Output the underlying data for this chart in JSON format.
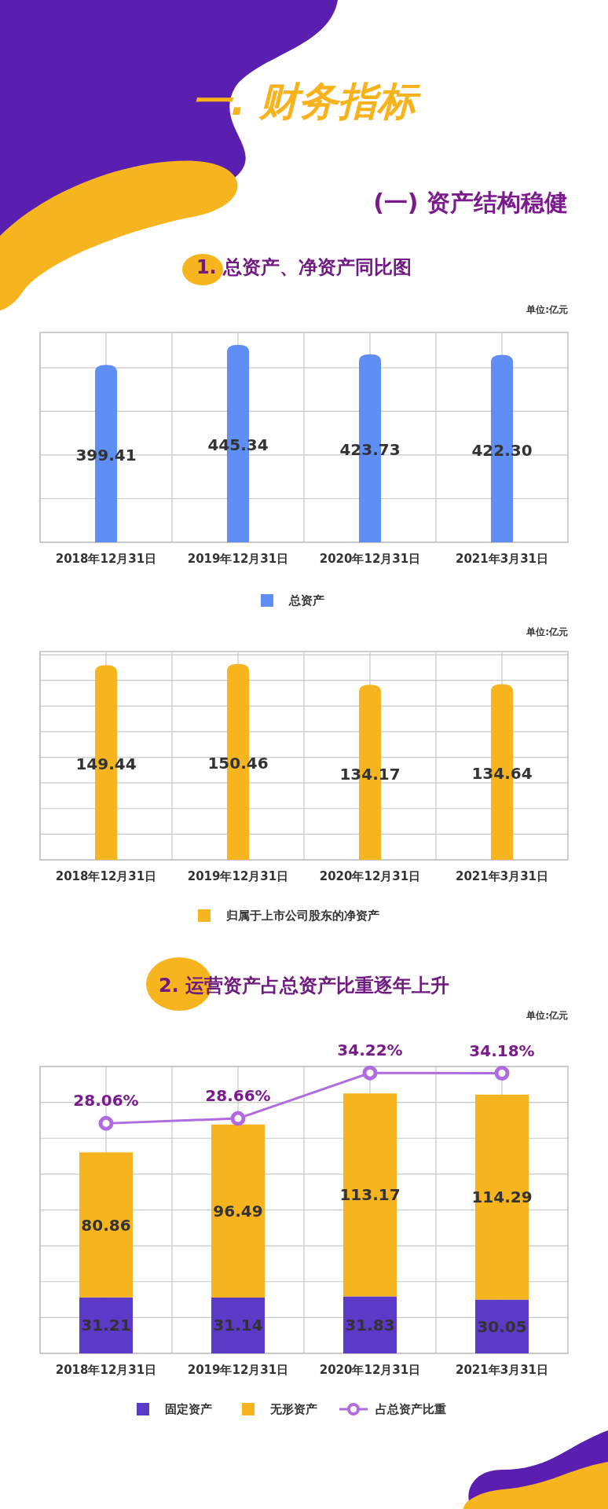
{
  "chart_data": [
    {
      "type": "bar",
      "title": "1. 总资产、净资产同比图",
      "annotations": [
        "一. 财务指标",
        "(一) 资产结构稳健",
        "单位:亿元"
      ],
      "categories": [
        "2018年12月31日",
        "2019年12月31日",
        "2020年12月31日",
        "2021年3月31日"
      ],
      "series": [
        {
          "name": "总资产",
          "color": "#5f8ef5",
          "values": [
            399.41,
            445.34,
            423.73,
            422.3
          ],
          "value_labels": [
            "399.41",
            "445.34",
            "423.73",
            "422.30"
          ]
        }
      ],
      "grid": true,
      "legend": "bottom"
    },
    {
      "type": "bar",
      "annotations": [
        "单位:亿元"
      ],
      "categories": [
        "2018年12月31日",
        "2019年12月31日",
        "2020年12月31日",
        "2021年3月31日"
      ],
      "series": [
        {
          "name": "归属于上市公司股东的净资产",
          "color": "#f6b51e",
          "values": [
            149.44,
            150.46,
            134.17,
            134.64
          ]
        }
      ],
      "grid": true,
      "legend": "bottom",
      "data_labels": true
    },
    {
      "type": "bar",
      "title": "2. 运营资产占总资产比重逐年上升",
      "annotations": [
        "单位:亿元"
      ],
      "categories": [
        "2018年12月31日",
        "2019年12月31日",
        "2020年12月31日",
        "2021年3月31日"
      ],
      "stacked": true,
      "series": [
        {
          "name": "固定资产",
          "color": "#5a3ac6",
          "values": [
            31.21,
            31.14,
            31.83,
            30.05
          ]
        },
        {
          "name": "无形资产",
          "color": "#f6b51e",
          "values": [
            80.86,
            96.49,
            113.17,
            114.29
          ]
        },
        {
          "name": "占总资产比重",
          "type": "line",
          "axis": "y2",
          "color": "#b06be0",
          "values": [
            28.06,
            28.66,
            34.22,
            34.18
          ],
          "value_labels": [
            "28.06%",
            "28.66%",
            "34.22%",
            "34.18%"
          ]
        }
      ],
      "ylim": [
        0,
        160
      ],
      "yticks": [
        {
          "value": 0,
          "label": null
        },
        {
          "value": 20,
          "label": null
        },
        {
          "value": 40,
          "label": null
        },
        {
          "value": 60,
          "label": null
        },
        {
          "value": 80,
          "label": null
        },
        {
          "value": 100,
          "label": null
        },
        {
          "value": 120,
          "label": null
        },
        {
          "value": 140,
          "label": null
        },
        {
          "value": 160,
          "label": null
        }
      ],
      "y2lim": [
        0,
        35
      ],
      "grid": true,
      "legend": "bottom",
      "marker": "circle",
      "data_labels": true
    }
  ]
}
